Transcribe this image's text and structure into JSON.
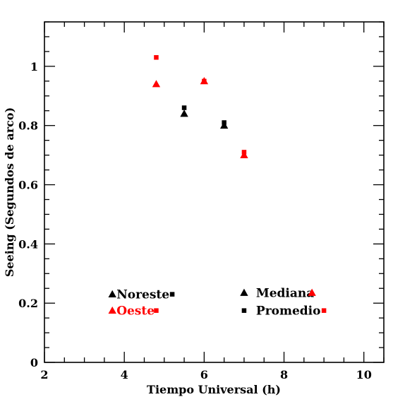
{
  "chart_data": {
    "type": "scatter",
    "title": "",
    "xlabel": "Tiempo Universal (h)",
    "ylabel": "Seeing (Segundos de arco)",
    "xlim": [
      2,
      10.5
    ],
    "ylim": [
      0,
      1.15
    ],
    "xticks": [
      2,
      4,
      6,
      8,
      10
    ],
    "yticks": [
      0,
      0.2,
      0.4,
      0.6,
      0.8,
      1
    ],
    "colors": {
      "noreste": "#000000",
      "oeste": "#ff0000"
    },
    "series": [
      {
        "name": "Noreste",
        "statistic": "Mediana",
        "marker": "triangle",
        "color": "#000000",
        "x": [
          5.5,
          6.5
        ],
        "y": [
          0.84,
          0.8
        ]
      },
      {
        "name": "Noreste",
        "statistic": "Promedio",
        "marker": "square",
        "color": "#000000",
        "x": [
          5.5,
          6.5
        ],
        "y": [
          0.86,
          0.81
        ]
      },
      {
        "name": "Oeste",
        "statistic": "Mediana",
        "marker": "triangle",
        "color": "#ff0000",
        "x": [
          4.8,
          6.0,
          7.0
        ],
        "y": [
          0.94,
          0.95,
          0.7
        ]
      },
      {
        "name": "Oeste",
        "statistic": "Promedio",
        "marker": "square",
        "color": "#ff0000",
        "x": [
          4.8,
          6.0,
          7.0
        ],
        "y": [
          1.03,
          0.95,
          0.71
        ]
      }
    ],
    "legend": {
      "location": "lower center",
      "left": [
        {
          "label": "Noreste",
          "color": "#000000"
        },
        {
          "label": "Oeste",
          "color": "#ff0000"
        }
      ],
      "right": [
        {
          "label": "Mediana",
          "marker": "triangle"
        },
        {
          "label": "Promedio",
          "marker": "square"
        }
      ]
    }
  }
}
